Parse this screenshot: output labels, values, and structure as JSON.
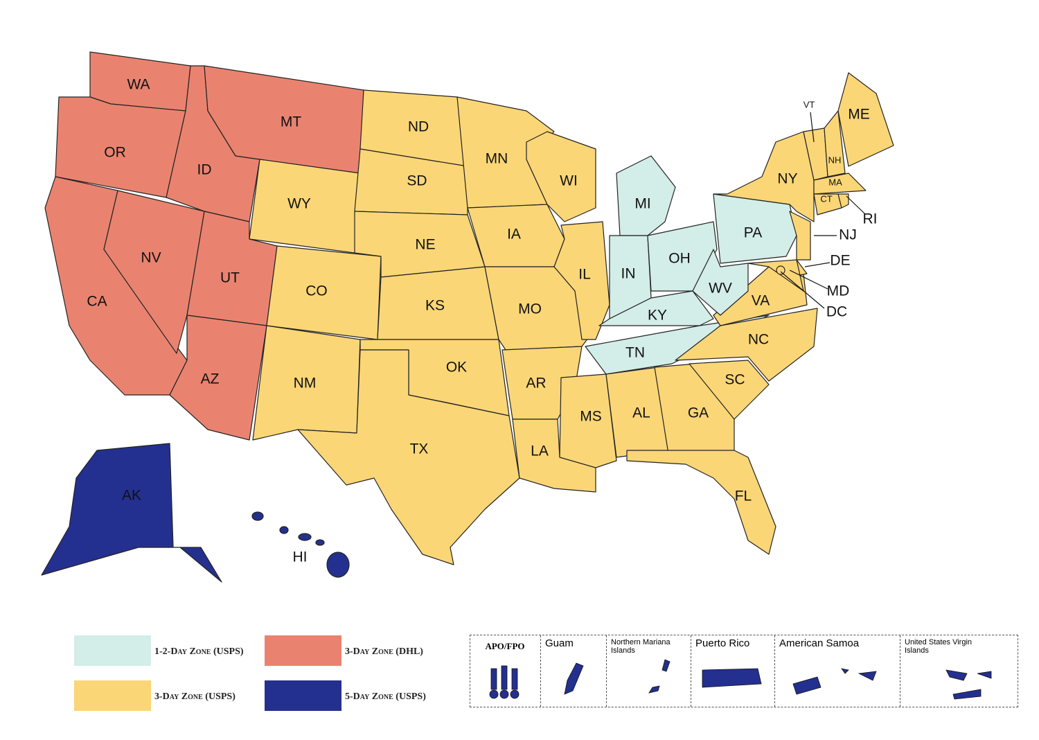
{
  "zones": [
    {
      "label": "1-2-Day Zone (USPS)",
      "color": "#d3ede8"
    },
    {
      "label": "3-Day Zone (DHL)",
      "color": "#e98370"
    },
    {
      "label": "3-Day Zone (USPS)",
      "color": "#fad677"
    },
    {
      "label": "5-Day Zone (USPS)",
      "color": "#24308f"
    }
  ],
  "states": [
    {
      "label": "WA",
      "zone": 1
    },
    {
      "label": "OR",
      "zone": 1
    },
    {
      "label": "CA",
      "zone": 1
    },
    {
      "label": "NV",
      "zone": 1
    },
    {
      "label": "ID",
      "zone": 1
    },
    {
      "label": "MT",
      "zone": 1
    },
    {
      "label": "WY",
      "zone": 2
    },
    {
      "label": "UT",
      "zone": 1
    },
    {
      "label": "CO",
      "zone": 2
    },
    {
      "label": "AZ",
      "zone": 1
    },
    {
      "label": "NM",
      "zone": 2
    },
    {
      "label": "ND",
      "zone": 2
    },
    {
      "label": "SD",
      "zone": 2
    },
    {
      "label": "NE",
      "zone": 2
    },
    {
      "label": "KS",
      "zone": 2
    },
    {
      "label": "OK",
      "zone": 2
    },
    {
      "label": "TX",
      "zone": 2
    },
    {
      "label": "MN",
      "zone": 2
    },
    {
      "label": "IA",
      "zone": 2
    },
    {
      "label": "MO",
      "zone": 2
    },
    {
      "label": "AR",
      "zone": 2
    },
    {
      "label": "LA",
      "zone": 2
    },
    {
      "label": "WI",
      "zone": 2
    },
    {
      "label": "IL",
      "zone": 2
    },
    {
      "label": "MI",
      "zone": 0
    },
    {
      "label": "IN",
      "zone": 0
    },
    {
      "label": "OH",
      "zone": 0
    },
    {
      "label": "KY",
      "zone": 0
    },
    {
      "label": "TN",
      "zone": 0
    },
    {
      "label": "MS",
      "zone": 2
    },
    {
      "label": "AL",
      "zone": 2
    },
    {
      "label": "GA",
      "zone": 2
    },
    {
      "label": "FL",
      "zone": 2
    },
    {
      "label": "SC",
      "zone": 2
    },
    {
      "label": "NC",
      "zone": 2
    },
    {
      "label": "VA",
      "zone": 2
    },
    {
      "label": "WV",
      "zone": 0
    },
    {
      "label": "PA",
      "zone": 0
    },
    {
      "label": "NY",
      "zone": 2
    },
    {
      "label": "NJ",
      "zone": 2
    },
    {
      "label": "DE",
      "zone": 2
    },
    {
      "label": "MD",
      "zone": 2
    },
    {
      "label": "DC",
      "zone": 2
    },
    {
      "label": "VT",
      "zone": 2
    },
    {
      "label": "NH",
      "zone": 2
    },
    {
      "label": "ME",
      "zone": 2
    },
    {
      "label": "MA",
      "zone": 2
    },
    {
      "label": "CT",
      "zone": 2
    },
    {
      "label": "RI",
      "zone": 2
    },
    {
      "label": "AK",
      "zone": 3
    },
    {
      "label": "HI",
      "zone": 3
    }
  ],
  "territories": [
    {
      "label": "APO/FPO",
      "zone": 3
    },
    {
      "label": "Guam",
      "zone": 3
    },
    {
      "label": "Northern Mariana Islands",
      "zone": 3
    },
    {
      "label": "Puerto Rico",
      "zone": 3
    },
    {
      "label": "American Samoa",
      "zone": 3
    },
    {
      "label": "United States Virgin Islands",
      "zone": 3
    }
  ]
}
